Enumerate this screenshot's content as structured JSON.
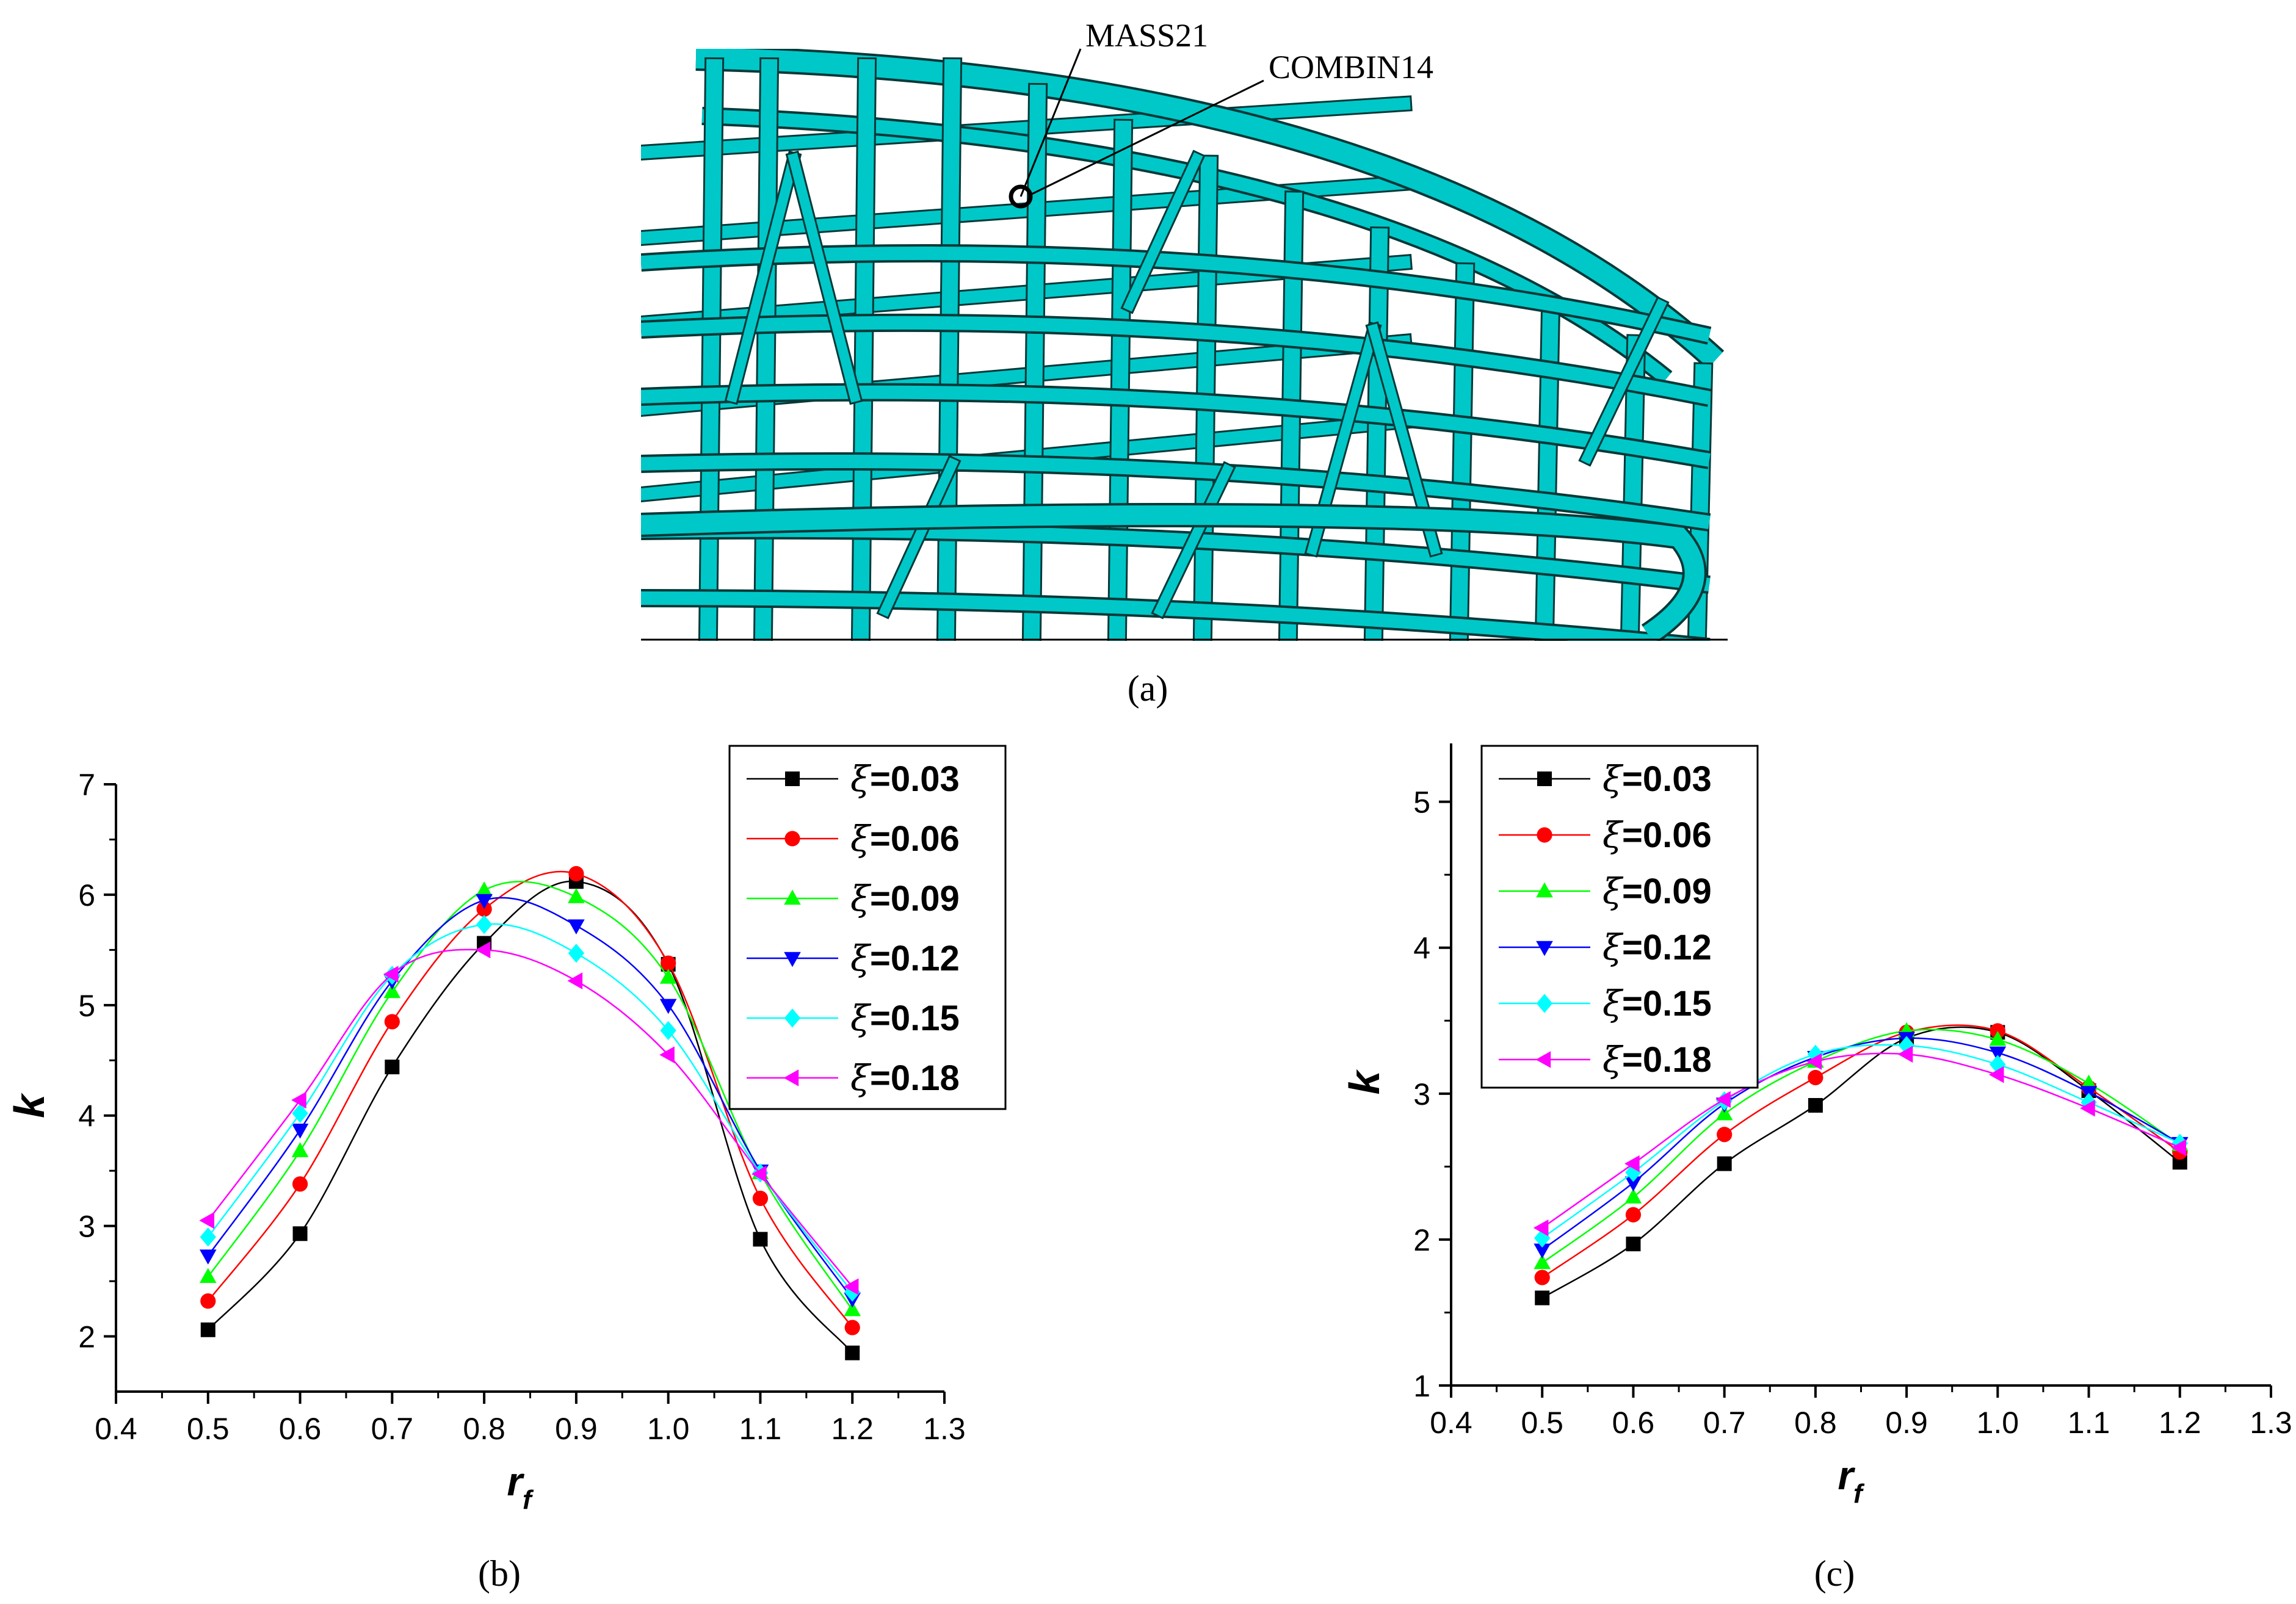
{
  "panel_a": {
    "caption": "(a)",
    "labels": {
      "mass": "MASS21",
      "spring": "COMBIN14"
    },
    "model_color": "#00C8C8"
  },
  "chart_data": [
    {
      "type": "line",
      "caption": "(b)",
      "xlabel": "r",
      "xlabel_sub": "f",
      "ylabel": "k",
      "xlim": [
        0.4,
        1.3
      ],
      "ylim": [
        1.5,
        7
      ],
      "xticks": [
        "0.4",
        "0.5",
        "0.6",
        "0.7",
        "0.8",
        "0.9",
        "1.0",
        "1.1",
        "1.2",
        "1.3"
      ],
      "yticks": [
        "2",
        "3",
        "4",
        "5",
        "6",
        "7"
      ],
      "x": [
        0.5,
        0.6,
        0.7,
        0.8,
        0.9,
        1.0,
        1.1,
        1.2
      ],
      "legend_position": "top-right",
      "series": [
        {
          "name": "ξ=0.03",
          "prefix": "ξ",
          "label": "=0.03",
          "color": "#000000",
          "marker": "square",
          "values": [
            2.06,
            2.93,
            4.44,
            5.56,
            6.12,
            5.37,
            2.88,
            1.85
          ]
        },
        {
          "name": "ξ=0.06",
          "prefix": "ξ",
          "label": "=0.06",
          "color": "#FF0000",
          "marker": "circle",
          "values": [
            2.32,
            3.38,
            4.85,
            5.87,
            6.19,
            5.38,
            3.25,
            2.08
          ]
        },
        {
          "name": "ξ=0.09",
          "prefix": "ξ",
          "label": "=0.09",
          "color": "#00FF00",
          "marker": "triangle-up",
          "values": [
            2.54,
            3.68,
            5.12,
            6.04,
            5.98,
            5.25,
            3.48,
            2.24
          ]
        },
        {
          "name": "ξ=0.12",
          "prefix": "ξ",
          "label": "=0.12",
          "color": "#0000FF",
          "marker": "triangle-down",
          "values": [
            2.73,
            3.87,
            5.22,
            5.95,
            5.72,
            5.0,
            3.5,
            2.34
          ]
        },
        {
          "name": "ξ=0.15",
          "prefix": "ξ",
          "label": "=0.15",
          "color": "#00FFFF",
          "marker": "diamond",
          "values": [
            2.9,
            4.02,
            5.27,
            5.73,
            5.47,
            4.77,
            3.48,
            2.4
          ]
        },
        {
          "name": "ξ=0.18",
          "prefix": "ξ",
          "label": "=0.18",
          "color": "#FF00FF",
          "marker": "triangle-left",
          "values": [
            3.05,
            4.14,
            5.28,
            5.5,
            5.22,
            4.55,
            3.47,
            2.45
          ]
        }
      ]
    },
    {
      "type": "line",
      "caption": "(c)",
      "xlabel": "r",
      "xlabel_sub": "f",
      "ylabel": "k",
      "xlim": [
        0.4,
        1.3
      ],
      "ylim": [
        1,
        5.4
      ],
      "xticks": [
        "0.4",
        "0.5",
        "0.6",
        "0.7",
        "0.8",
        "0.9",
        "1.0",
        "1.1",
        "1.2",
        "1.3"
      ],
      "yticks": [
        "1",
        "2",
        "3",
        "4",
        "5"
      ],
      "x": [
        0.5,
        0.6,
        0.7,
        0.8,
        0.9,
        1.0,
        1.1,
        1.2
      ],
      "legend_position": "top-left",
      "series": [
        {
          "name": "ξ=0.03",
          "prefix": "ξ",
          "label": "=0.03",
          "color": "#000000",
          "marker": "square",
          "values": [
            1.6,
            1.97,
            2.52,
            2.92,
            3.38,
            3.42,
            3.02,
            2.53
          ]
        },
        {
          "name": "ξ=0.06",
          "prefix": "ξ",
          "label": "=0.06",
          "color": "#FF0000",
          "marker": "circle",
          "values": [
            1.74,
            2.17,
            2.72,
            3.11,
            3.42,
            3.43,
            3.04,
            2.6
          ]
        },
        {
          "name": "ξ=0.09",
          "prefix": "ξ",
          "label": "=0.09",
          "color": "#00FF00",
          "marker": "triangle-up",
          "values": [
            1.84,
            2.29,
            2.86,
            3.22,
            3.43,
            3.37,
            3.07,
            2.65
          ]
        },
        {
          "name": "ξ=0.12",
          "prefix": "ξ",
          "label": "=0.12",
          "color": "#0000FF",
          "marker": "triangle-down",
          "values": [
            1.93,
            2.39,
            2.93,
            3.25,
            3.38,
            3.28,
            3.01,
            2.66
          ]
        },
        {
          "name": "ξ=0.15",
          "prefix": "ξ",
          "label": "=0.15",
          "color": "#00FFFF",
          "marker": "diamond",
          "values": [
            2.01,
            2.46,
            2.95,
            3.27,
            3.33,
            3.2,
            2.94,
            2.66
          ]
        },
        {
          "name": "ξ=0.18",
          "prefix": "ξ",
          "label": "=0.18",
          "color": "#FF00FF",
          "marker": "triangle-left",
          "values": [
            2.08,
            2.52,
            2.96,
            3.22,
            3.27,
            3.13,
            2.9,
            2.63
          ]
        }
      ]
    }
  ]
}
